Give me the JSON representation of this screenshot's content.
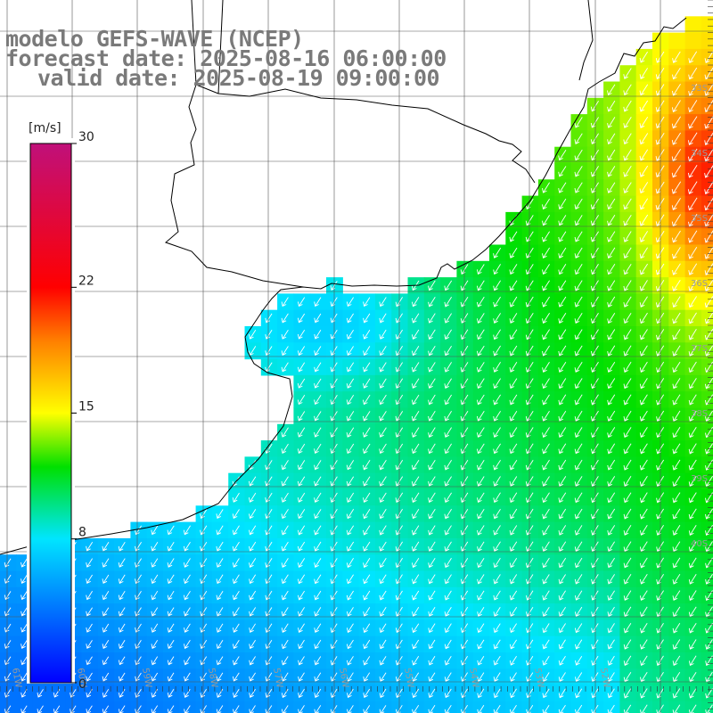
{
  "title": {
    "line1": "modelo GEFS-WAVE (NCEP)",
    "line2": "forecast date: 2025-08-16 06:00:00",
    "line3": "valid date: 2025-08-19 09:00:00"
  },
  "colorbar": {
    "unit": "[m/s]",
    "min": 0,
    "max": 30,
    "ticks": [
      {
        "label": "30",
        "value": 30
      },
      {
        "label": "22",
        "value": 22
      },
      {
        "label": "15",
        "value": 15
      },
      {
        "label": "8",
        "value": 8
      },
      {
        "label": "0",
        "value": 0
      }
    ],
    "colors": [
      "#0000ff",
      "#00e5ff",
      "#00e000",
      "#ffff00",
      "#ff8000",
      "#ff0000",
      "#c0107a"
    ]
  },
  "map": {
    "lat_labels": [
      "33S",
      "34S",
      "35S",
      "36S",
      "37S",
      "38S",
      "39S",
      "40S"
    ],
    "lon_labels": [
      "61W",
      "60W",
      "59W",
      "58W",
      "57W",
      "56W",
      "55W",
      "54W",
      "53W",
      "52W"
    ],
    "colors": {
      "land": "#ffffff",
      "coast": "#000000",
      "grid": "#555555",
      "arrow": "#ffffff"
    }
  }
}
